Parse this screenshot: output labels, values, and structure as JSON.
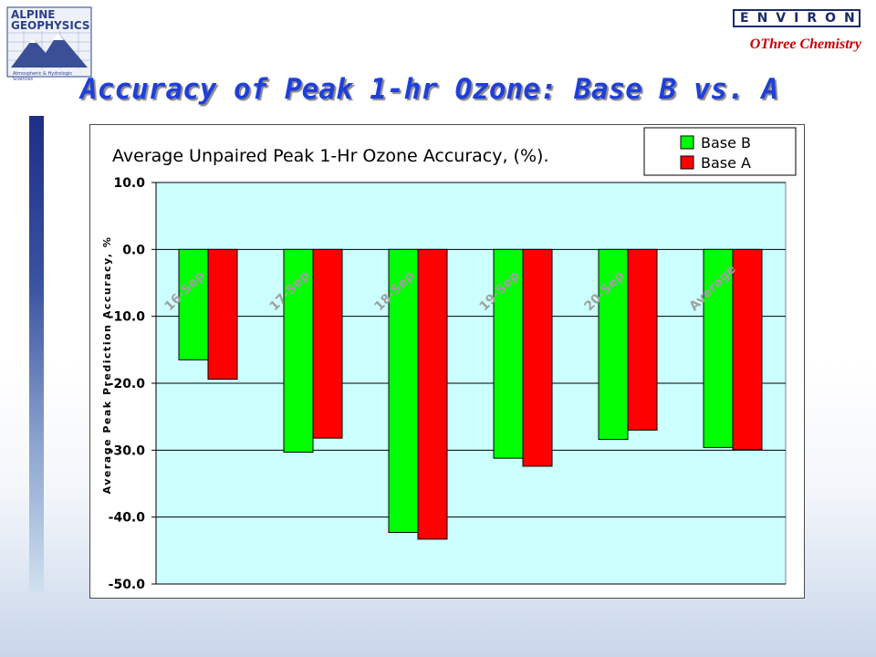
{
  "header": {
    "logo_line1": "ALPINE",
    "logo_line2": "GEOPHYSICS",
    "logo_tagline": "Atmospheric & Hydrologic Sciences",
    "environ_label": "ENVIRON",
    "othree_label": "OThree Chemistry"
  },
  "slide_title": "Accuracy of Peak 1-hr Ozone: Base B vs. A",
  "colors": {
    "base_b": "#00ff00",
    "base_a": "#ff0000",
    "plot_bg": "#ccffff",
    "title_blue": "#1f3fd8"
  },
  "chart_data": {
    "type": "bar",
    "title": "Average Unpaired Peak 1-Hr Ozone Accuracy, (%).",
    "xlabel": "",
    "ylabel": "Average Peak Prediction Accuracy, %",
    "ylim": [
      -50,
      10
    ],
    "yticks": [
      10,
      0,
      -10,
      -20,
      -30,
      -40,
      -50
    ],
    "ytick_labels": [
      "10.0",
      "0.0",
      "-10.0",
      "-20.0",
      "-30.0",
      "-40.0",
      "-50.0"
    ],
    "categories": [
      "16-Sep",
      "17-Sep",
      "18-Sep",
      "19-Sep",
      "20-Sep",
      "Average"
    ],
    "series": [
      {
        "name": "Base B",
        "color": "#00ff00",
        "values": [
          -16.5,
          -30.3,
          -42.3,
          -31.2,
          -28.4,
          -29.6
        ]
      },
      {
        "name": "Base A",
        "color": "#ff0000",
        "values": [
          -19.4,
          -28.2,
          -43.3,
          -32.4,
          -27.0,
          -29.9
        ]
      }
    ],
    "grid": true,
    "legend_position": "top-right"
  }
}
